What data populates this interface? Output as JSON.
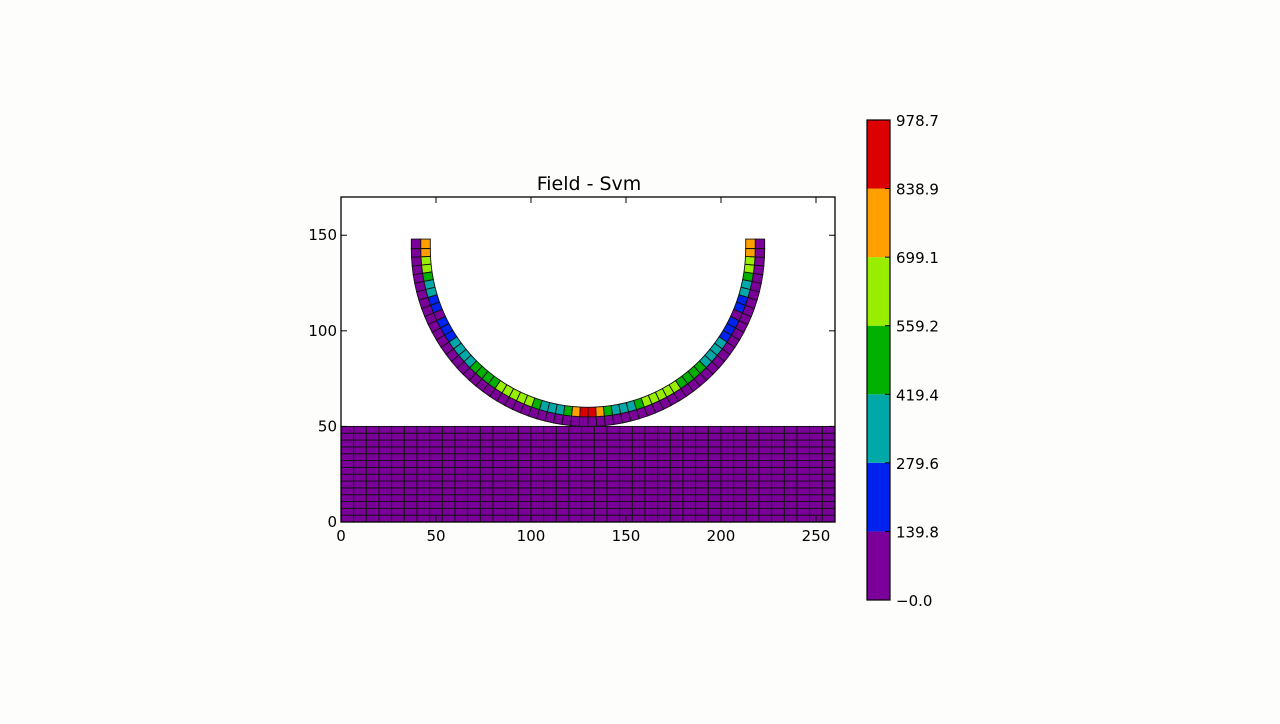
{
  "chart_data": {
    "type": "heatmap",
    "title": "Field - Svm",
    "xlabel": "",
    "ylabel": "",
    "xlim": [
      0,
      260
    ],
    "ylim": [
      0,
      170
    ],
    "x_ticks": [
      "0",
      "50",
      "100",
      "150",
      "200",
      "250"
    ],
    "y_ticks": [
      "0",
      "50",
      "100",
      "150"
    ],
    "grid": false,
    "mesh": {
      "block": {
        "x_range": [
          0,
          260
        ],
        "y_range": [
          0,
          50
        ],
        "columns": 39,
        "rows": 14,
        "value": 0
      },
      "ring": {
        "center": [
          130,
          143
        ],
        "inner_radius": 83,
        "outer_radius": 93,
        "radial_layers": 2,
        "arc_elements": 64,
        "straight_extension": 5,
        "note_values": "Svm per element of the bent beam; inner layer is stressed, outer layer near zero"
      }
    },
    "colorbar": {
      "min": -0.0,
      "max": 978.7,
      "tick_labels": [
        "978.7",
        "838.9",
        "699.1",
        "559.2",
        "419.4",
        "279.6",
        "139.8",
        "−0.0"
      ],
      "colors": [
        "#7b0099",
        "#0022ee",
        "#00a8a8",
        "#00b000",
        "#99ee00",
        "#ffa000",
        "#dd0000"
      ],
      "levels": [
        -0.0,
        139.8,
        279.6,
        419.4,
        559.2,
        699.1,
        838.9,
        978.7
      ]
    },
    "ring_inner_profile": [
      {
        "s": 0.0,
        "value": 750
      },
      {
        "s": 0.04,
        "value": 650
      },
      {
        "s": 0.08,
        "value": 320
      },
      {
        "s": 0.13,
        "value": 120
      },
      {
        "s": 0.2,
        "value": 300
      },
      {
        "s": 0.28,
        "value": 520
      },
      {
        "s": 0.36,
        "value": 640
      },
      {
        "s": 0.4,
        "value": 520
      },
      {
        "s": 0.43,
        "value": 290
      },
      {
        "s": 0.46,
        "value": 420
      },
      {
        "s": 0.48,
        "value": 760
      },
      {
        "s": 0.5,
        "value": 950
      }
    ]
  }
}
